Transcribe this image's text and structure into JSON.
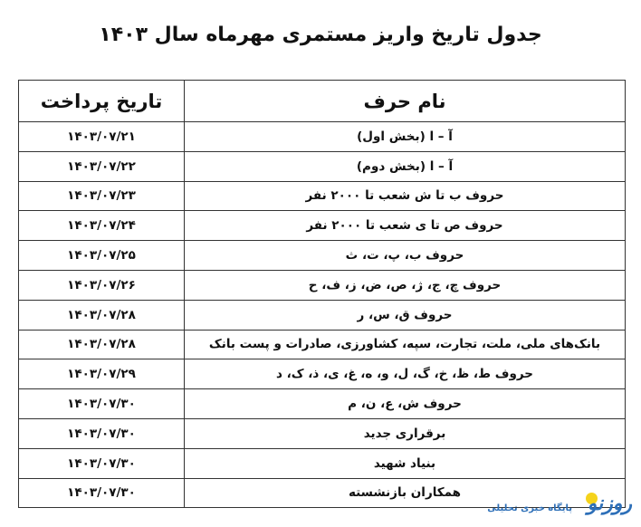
{
  "title": "جدول تاریخ واریز مستمری مهرماه سال ۱۴۰۳",
  "table": {
    "headers": {
      "name": "نام حرف",
      "date": "تاریخ پرداخت"
    },
    "rows": [
      {
        "name": "آ – ا (بخش اول)",
        "date": "۱۴۰۳/۰۷/۲۱"
      },
      {
        "name": "آ – ا (بخش دوم)",
        "date": "۱۴۰۳/۰۷/۲۲"
      },
      {
        "name": "حروف ب تا ش شعب تا ۲۰۰۰ نفر",
        "date": "۱۴۰۳/۰۷/۲۳"
      },
      {
        "name": "حروف ص تا ی شعب تا ۲۰۰۰ نفر",
        "date": "۱۴۰۳/۰۷/۲۴"
      },
      {
        "name": "حروف ب، پ، ت، ث",
        "date": "۱۴۰۳/۰۷/۲۵"
      },
      {
        "name": "حروف چ، ج، ژ، ص، ض، ز، ف، ح",
        "date": "۱۴۰۳/۰۷/۲۶"
      },
      {
        "name": "حروف ق، س، ر",
        "date": "۱۴۰۳/۰۷/۲۸"
      },
      {
        "name": "بانک‌های ملی، ملت، تجارت، سپه، کشاورزی، صادرات و پست بانک",
        "date": "۱۴۰۳/۰۷/۲۸"
      },
      {
        "name": "حروف ط، ظ، خ، گ، ل، و، ه، غ، ی، ذ، ک، د",
        "date": "۱۴۰۳/۰۷/۲۹"
      },
      {
        "name": "حروف ش، ع، ن، م",
        "date": "۱۴۰۳/۰۷/۳۰"
      },
      {
        "name": "برقراری جدید",
        "date": "۱۴۰۳/۰۷/۳۰"
      },
      {
        "name": "بنیاد شهید",
        "date": "۱۴۰۳/۰۷/۳۰"
      },
      {
        "name": "همکاران بازنشسته",
        "date": "۱۴۰۳/۰۷/۳۰"
      }
    ]
  },
  "logo": {
    "name": "روزنو",
    "subtitle": "پایگاه خبری تحلیلی",
    "colors": {
      "blue": "#2d6fb8",
      "yellow": "#f5d31c"
    }
  }
}
